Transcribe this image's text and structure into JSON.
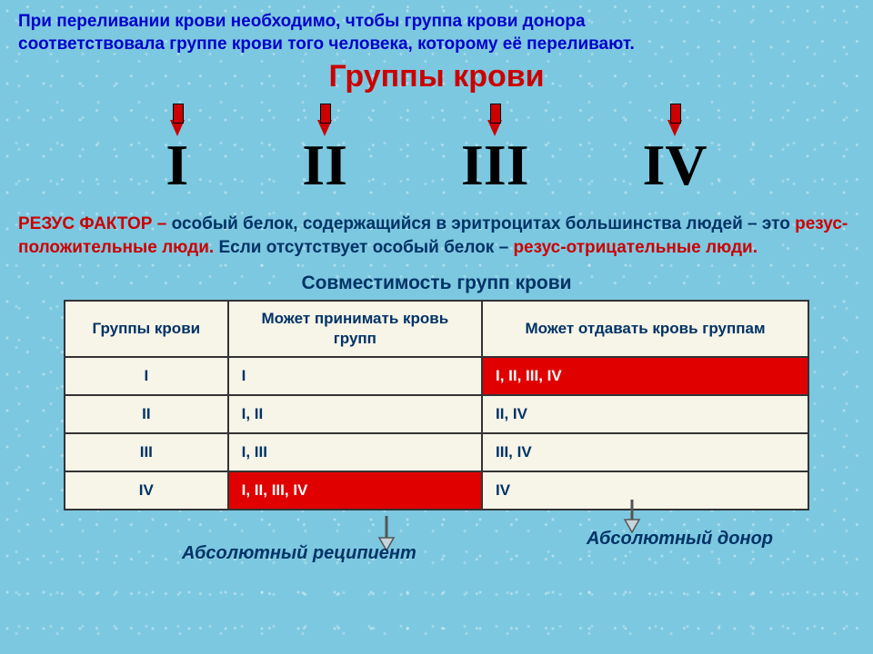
{
  "intro": {
    "line1": "При переливании крови необходимо, чтобы группа крови донора",
    "line2": "соответствовала группе крови того человека, которому её переливают."
  },
  "title": "Группы крови",
  "romans": [
    "I",
    "II",
    "III",
    "IV"
  ],
  "rhesus": {
    "label": "РЕЗУС ФАКТОР – ",
    "part1": "особый белок, содержащийся в эритроцитах большинства людей – это ",
    "positive": "резус-положительные люди.",
    "part2": " Если отсутствует особый белок – ",
    "negative": "резус-отрицательные люди."
  },
  "table": {
    "title": "Совместимость групп крови",
    "headers": [
      "Группы крови",
      "Может принимать кровь групп",
      "Может отдавать кровь группам"
    ],
    "rows": [
      {
        "group": "I",
        "accept": "I",
        "donate": "I, II, III, IV",
        "accept_hl": false,
        "donate_hl": true
      },
      {
        "group": "II",
        "accept": "I, II",
        "donate": "II, IV",
        "accept_hl": false,
        "donate_hl": false
      },
      {
        "group": "III",
        "accept": "I, III",
        "donate": "III, IV",
        "accept_hl": false,
        "donate_hl": false
      },
      {
        "group": "IV",
        "accept": "I, II, III, IV",
        "donate": "IV",
        "accept_hl": true,
        "donate_hl": false
      }
    ]
  },
  "labels": {
    "recipient": "Абсолютный реципиент",
    "donor": "Абсолютный донор"
  },
  "colors": {
    "background": "#7cc8e0",
    "title_red": "#cc0000",
    "intro_blue": "#0000cc",
    "body_navy": "#003366",
    "highlight_bg": "#e00000",
    "table_bg": "#f7f4e8",
    "arrow_fill": "#c8d4dc"
  }
}
